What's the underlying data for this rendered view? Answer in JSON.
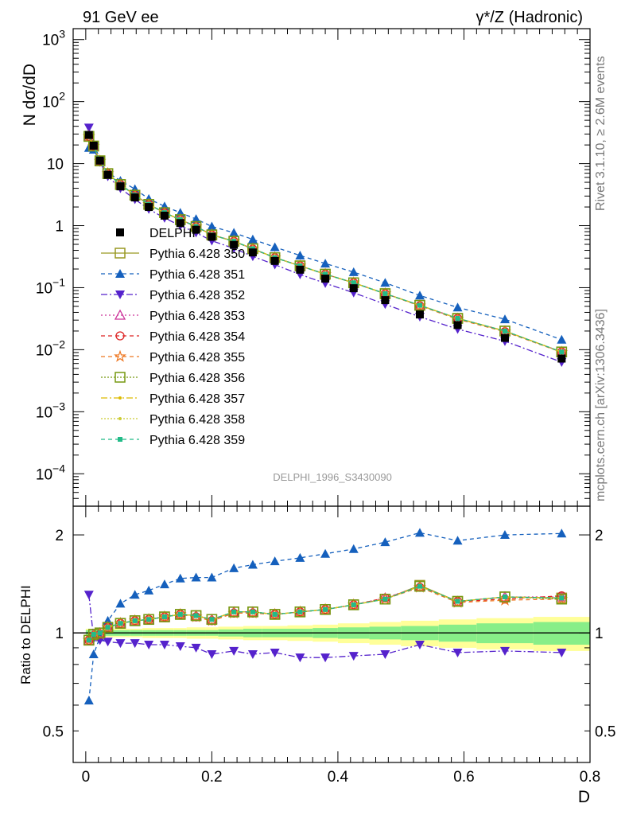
{
  "header": {
    "left": "91 GeV ee",
    "right": "γ*/Z (Hadronic)"
  },
  "side_text": {
    "rivet": "Rivet 3.1.10, ≥ 2.6M events",
    "site": "mcplots.cern.ch [arXiv:1306.3436]"
  },
  "watermark": "DELPHI_1996_S3430090",
  "chart_data": [
    {
      "type": "line",
      "panel": "main",
      "ylabel": "N dσ/dD",
      "yscale": "log",
      "xlim": [
        -0.02,
        0.8
      ],
      "ylim": [
        3e-05,
        1500
      ],
      "yticks": [
        {
          "v": 0.0001,
          "base": "10",
          "exp": "−4"
        },
        {
          "v": 0.001,
          "base": "10",
          "exp": "−3"
        },
        {
          "v": 0.01,
          "base": "10",
          "exp": "−2"
        },
        {
          "v": 0.1,
          "base": "10",
          "exp": "−1"
        },
        {
          "v": 1,
          "base": "1",
          "exp": ""
        },
        {
          "v": 10,
          "base": "10",
          "exp": ""
        },
        {
          "v": 100,
          "base": "10",
          "exp": "2"
        },
        {
          "v": 1000,
          "base": "10",
          "exp": "3"
        }
      ],
      "x": [
        0.005,
        0.0125,
        0.0225,
        0.035,
        0.055,
        0.078,
        0.1,
        0.125,
        0.15,
        0.175,
        0.2,
        0.235,
        0.265,
        0.3,
        0.34,
        0.38,
        0.425,
        0.475,
        0.53,
        0.59,
        0.665,
        0.755
      ],
      "series": [
        {
          "name": "DELPHI",
          "color": "#000000",
          "marker": "filled-square",
          "dash": "none",
          "values": [
            29,
            19.5,
            11.2,
            6.6,
            4.3,
            2.85,
            2.0,
            1.45,
            1.1,
            0.86,
            0.66,
            0.49,
            0.37,
            0.27,
            0.195,
            0.14,
            0.098,
            0.063,
            0.037,
            0.025,
            0.0155,
            0.0072
          ]
        },
        {
          "name": "Pythia 6.428 350",
          "color": "#999922",
          "marker": "open-square",
          "dash": "none",
          "values": [
            27.5,
            19.2,
            11.1,
            6.9,
            4.6,
            3.1,
            2.2,
            1.62,
            1.25,
            0.97,
            0.71,
            0.56,
            0.425,
            0.305,
            0.225,
            0.165,
            0.12,
            0.08,
            0.052,
            0.032,
            0.02,
            0.0092
          ]
        },
        {
          "name": "Pythia 6.428 351",
          "color": "#1560bd",
          "marker": "filled-triangle-up",
          "dash": "5,4",
          "values": [
            18,
            16.8,
            10.9,
            7.2,
            5.3,
            3.9,
            2.7,
            2.05,
            1.62,
            1.28,
            0.97,
            0.77,
            0.6,
            0.45,
            0.33,
            0.245,
            0.178,
            0.12,
            0.075,
            0.048,
            0.031,
            0.0145
          ]
        },
        {
          "name": "Pythia 6.428 352",
          "color": "#5522cc",
          "marker": "filled-triangle-down",
          "dash": "8,3,2,3",
          "values": [
            38,
            18.8,
            10.6,
            6.2,
            4.0,
            2.65,
            1.85,
            1.33,
            1.0,
            0.77,
            0.57,
            0.43,
            0.32,
            0.235,
            0.163,
            0.118,
            0.083,
            0.054,
            0.034,
            0.0215,
            0.0137,
            0.0063
          ]
        },
        {
          "name": "Pythia 6.428 353",
          "color": "#cc3399",
          "marker": "open-triangle-up",
          "dash": "2,3",
          "values": [
            27.6,
            19.3,
            11.1,
            6.9,
            4.6,
            3.1,
            2.2,
            1.62,
            1.25,
            0.97,
            0.72,
            0.56,
            0.425,
            0.305,
            0.225,
            0.165,
            0.12,
            0.08,
            0.052,
            0.032,
            0.02,
            0.0092
          ]
        },
        {
          "name": "Pythia 6.428 354",
          "color": "#dd2222",
          "marker": "open-circle",
          "dash": "5,4",
          "values": [
            27.4,
            19.1,
            11.0,
            6.9,
            4.6,
            3.1,
            2.2,
            1.61,
            1.25,
            0.96,
            0.71,
            0.56,
            0.42,
            0.305,
            0.225,
            0.165,
            0.12,
            0.08,
            0.051,
            0.032,
            0.0195,
            0.0092
          ]
        },
        {
          "name": "Pythia 6.428 355",
          "color": "#ee7722",
          "marker": "open-star",
          "dash": "5,4",
          "values": [
            27.5,
            19.2,
            11.0,
            6.9,
            4.6,
            3.1,
            2.2,
            1.61,
            1.25,
            0.96,
            0.71,
            0.56,
            0.42,
            0.305,
            0.225,
            0.165,
            0.12,
            0.08,
            0.051,
            0.031,
            0.0195,
            0.0091
          ]
        },
        {
          "name": "Pythia 6.428 356",
          "color": "#779911",
          "marker": "open-square",
          "dash": "2,2",
          "values": [
            27.5,
            19.2,
            11.1,
            6.9,
            4.6,
            3.1,
            2.2,
            1.62,
            1.25,
            0.97,
            0.71,
            0.56,
            0.425,
            0.305,
            0.225,
            0.165,
            0.12,
            0.08,
            0.052,
            0.032,
            0.02,
            0.0092
          ]
        },
        {
          "name": "Pythia 6.428 357",
          "color": "#ddbb00",
          "marker": "small-dot",
          "dash": "8,3,2,3",
          "values": [
            27.5,
            19.2,
            11.1,
            6.9,
            4.6,
            3.1,
            2.2,
            1.62,
            1.25,
            0.97,
            0.71,
            0.56,
            0.425,
            0.305,
            0.225,
            0.165,
            0.12,
            0.08,
            0.052,
            0.032,
            0.02,
            0.0092
          ]
        },
        {
          "name": "Pythia 6.428 358",
          "color": "#cccc33",
          "marker": "small-dot",
          "dash": "2,2",
          "values": [
            27.5,
            19.2,
            11.1,
            6.9,
            4.6,
            3.1,
            2.2,
            1.62,
            1.25,
            0.97,
            0.71,
            0.56,
            0.425,
            0.305,
            0.225,
            0.165,
            0.12,
            0.08,
            0.052,
            0.032,
            0.02,
            0.0092
          ]
        },
        {
          "name": "Pythia 6.428 359",
          "color": "#22bb88",
          "marker": "filled-square-small",
          "dash": "5,4",
          "values": [
            27.5,
            19.2,
            11.1,
            6.9,
            4.6,
            3.1,
            2.2,
            1.62,
            1.25,
            0.97,
            0.71,
            0.56,
            0.425,
            0.305,
            0.225,
            0.165,
            0.12,
            0.08,
            0.052,
            0.032,
            0.02,
            0.0092
          ]
        }
      ]
    },
    {
      "type": "line",
      "panel": "ratio",
      "ylabel": "Ratio to DELPHI",
      "xlabel": "D",
      "yscale": "log",
      "xlim": [
        -0.02,
        0.8
      ],
      "ylim": [
        0.4,
        2.45
      ],
      "xticks": [
        "0",
        "0.2",
        "0.4",
        "0.6",
        "0.8"
      ],
      "yticks": [
        {
          "v": 0.5,
          "label": "0.5"
        },
        {
          "v": 1,
          "label": "1"
        },
        {
          "v": 2,
          "label": "2"
        }
      ],
      "x": [
        0.005,
        0.0125,
        0.0225,
        0.035,
        0.055,
        0.078,
        0.1,
        0.125,
        0.15,
        0.175,
        0.2,
        0.235,
        0.265,
        0.3,
        0.34,
        0.38,
        0.425,
        0.475,
        0.53,
        0.59,
        0.665,
        0.755
      ],
      "bands": {
        "edges": [
          0.0,
          0.01,
          0.015,
          0.03,
          0.04,
          0.07,
          0.09,
          0.11,
          0.14,
          0.16,
          0.19,
          0.21,
          0.25,
          0.28,
          0.32,
          0.36,
          0.4,
          0.45,
          0.5,
          0.56,
          0.62,
          0.71,
          0.8
        ],
        "stat_half": [
          0.02,
          0.02,
          0.02,
          0.02,
          0.02,
          0.02,
          0.02,
          0.02,
          0.02,
          0.02,
          0.02,
          0.025,
          0.03,
          0.03,
          0.03,
          0.035,
          0.04,
          0.045,
          0.05,
          0.06,
          0.07,
          0.08
        ],
        "total_half": [
          0.03,
          0.03,
          0.03,
          0.03,
          0.03,
          0.03,
          0.035,
          0.035,
          0.035,
          0.04,
          0.04,
          0.045,
          0.05,
          0.05,
          0.055,
          0.06,
          0.07,
          0.08,
          0.09,
          0.1,
          0.11,
          0.12
        ],
        "stat_color": "#88ee88",
        "total_color": "#ffff99"
      },
      "series": [
        {
          "name": "Pythia 6.428 350",
          "values": [
            0.95,
            0.99,
            1.0,
            1.04,
            1.07,
            1.09,
            1.1,
            1.12,
            1.14,
            1.13,
            1.1,
            1.16,
            1.16,
            1.14,
            1.16,
            1.18,
            1.22,
            1.27,
            1.4,
            1.25,
            1.29,
            1.28
          ]
        },
        {
          "name": "Pythia 6.428 351",
          "values": [
            0.62,
            0.86,
            0.97,
            1.09,
            1.23,
            1.31,
            1.35,
            1.41,
            1.47,
            1.48,
            1.48,
            1.58,
            1.62,
            1.66,
            1.7,
            1.75,
            1.81,
            1.9,
            2.03,
            1.92,
            2.0,
            2.02
          ]
        },
        {
          "name": "Pythia 6.428 352",
          "values": [
            1.31,
            0.96,
            0.95,
            0.94,
            0.93,
            0.93,
            0.92,
            0.92,
            0.91,
            0.9,
            0.86,
            0.88,
            0.86,
            0.87,
            0.84,
            0.84,
            0.85,
            0.86,
            0.92,
            0.87,
            0.88,
            0.87
          ]
        },
        {
          "name": "Pythia 6.428 353",
          "values": [
            0.95,
            0.99,
            1.0,
            1.04,
            1.07,
            1.09,
            1.1,
            1.12,
            1.14,
            1.13,
            1.1,
            1.16,
            1.16,
            1.14,
            1.16,
            1.18,
            1.22,
            1.28,
            1.39,
            1.25,
            1.29,
            1.29
          ]
        },
        {
          "name": "Pythia 6.428 354",
          "values": [
            0.95,
            0.98,
            0.99,
            1.04,
            1.07,
            1.09,
            1.1,
            1.12,
            1.14,
            1.12,
            1.09,
            1.15,
            1.15,
            1.14,
            1.16,
            1.18,
            1.22,
            1.28,
            1.38,
            1.25,
            1.27,
            1.3
          ]
        },
        {
          "name": "Pythia 6.428 355",
          "values": [
            0.95,
            0.98,
            0.99,
            1.04,
            1.07,
            1.09,
            1.1,
            1.12,
            1.14,
            1.12,
            1.09,
            1.15,
            1.15,
            1.14,
            1.16,
            1.18,
            1.22,
            1.27,
            1.38,
            1.24,
            1.26,
            1.27
          ]
        },
        {
          "name": "Pythia 6.428 356",
          "values": [
            0.95,
            0.99,
            1.0,
            1.04,
            1.07,
            1.09,
            1.1,
            1.12,
            1.14,
            1.13,
            1.1,
            1.16,
            1.16,
            1.14,
            1.16,
            1.18,
            1.22,
            1.27,
            1.39,
            1.25,
            1.29,
            1.27
          ]
        },
        {
          "name": "Pythia 6.428 357",
          "values": [
            0.95,
            0.99,
            1.0,
            1.04,
            1.07,
            1.09,
            1.1,
            1.12,
            1.14,
            1.13,
            1.1,
            1.16,
            1.16,
            1.14,
            1.16,
            1.18,
            1.22,
            1.27,
            1.39,
            1.25,
            1.29,
            1.28
          ]
        },
        {
          "name": "Pythia 6.428 358",
          "values": [
            0.95,
            0.99,
            1.0,
            1.04,
            1.07,
            1.09,
            1.1,
            1.12,
            1.14,
            1.13,
            1.1,
            1.16,
            1.16,
            1.14,
            1.16,
            1.18,
            1.22,
            1.27,
            1.39,
            1.25,
            1.29,
            1.28
          ]
        },
        {
          "name": "Pythia 6.428 359",
          "values": [
            0.95,
            0.99,
            1.0,
            1.04,
            1.07,
            1.09,
            1.1,
            1.12,
            1.14,
            1.13,
            1.1,
            1.16,
            1.16,
            1.14,
            1.16,
            1.18,
            1.22,
            1.27,
            1.39,
            1.25,
            1.29,
            1.28
          ]
        }
      ]
    }
  ]
}
